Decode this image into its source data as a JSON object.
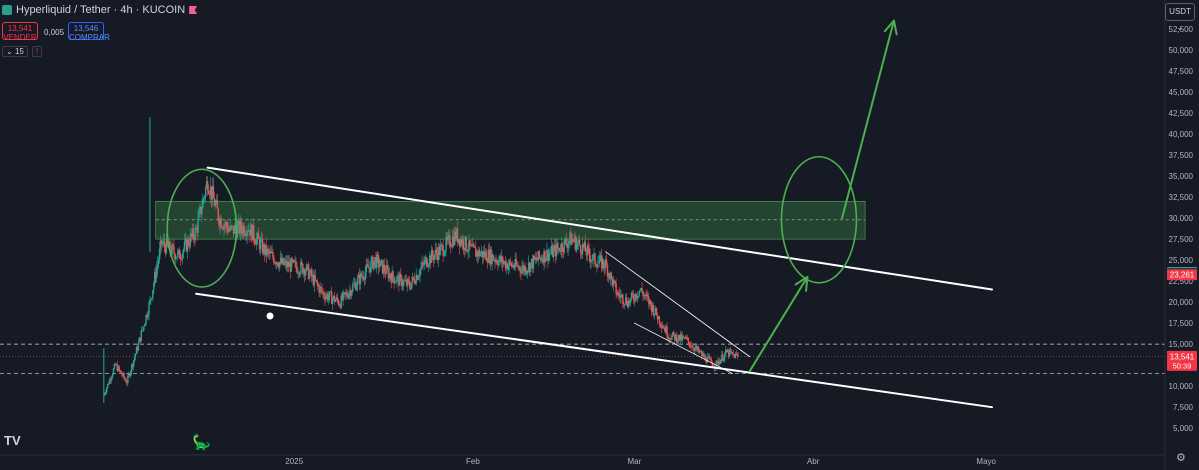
{
  "header": {
    "symbol": "Hyperliquid / Tether · 4h · KUCOIN",
    "sell_price": "13,541",
    "sell_label": "VENDER",
    "buy_price": "13,546",
    "buy_label": "COMPRAR",
    "spread": "0,005",
    "indicator_count": "15",
    "currency": "USDT"
  },
  "colors": {
    "background": "#161a25",
    "up": "#26a69a",
    "down": "#ef5350",
    "annotation_green": "#4caf50",
    "trendline": "#ffffff",
    "last_price": "#f23645"
  },
  "icons": [
    "tradingview-logo-icon",
    "dino-icon",
    "settings-icon",
    "chevron-down-icon",
    "flag-icon"
  ],
  "chart_data": {
    "type": "candlestick",
    "timeframe": "4h",
    "ylim": [
      3000,
      55000
    ],
    "y_ticks": [
      5000,
      7500,
      10000,
      12500,
      15000,
      17500,
      20000,
      22500,
      25000,
      27500,
      30000,
      32500,
      35000,
      37500,
      40000,
      42500,
      45000,
      47500,
      50000,
      52500
    ],
    "y_tick_labels": [
      "5,000",
      "7,500",
      "10,000",
      "12,500",
      "15,000",
      "17,500",
      "20,000",
      "22,500",
      "25,000",
      "27,500",
      "30,000",
      "32,500",
      "35,000",
      "37,500",
      "40,000",
      "42,500",
      "45,000",
      "47,500",
      "50,000",
      "52,500"
    ],
    "x_axis_labels": [
      "2025",
      "Feb",
      "Mar",
      "Abr",
      "Mayo"
    ],
    "x_axis_dates": [
      "2025-01-01",
      "2025-02-01",
      "2025-03-01",
      "2025-04-01",
      "2025-05-01"
    ],
    "x_range": [
      "2024-11-11",
      "2025-06-01"
    ],
    "price_path": [
      [
        "2024-11-29",
        9000
      ],
      [
        "2024-12-01",
        12500
      ],
      [
        "2024-12-03",
        10500
      ],
      [
        "2024-12-05",
        15000
      ],
      [
        "2024-12-07",
        20000
      ],
      [
        "2024-12-09",
        27000
      ],
      [
        "2024-12-12",
        25500
      ],
      [
        "2024-12-15",
        28500
      ],
      [
        "2024-12-17",
        34500
      ],
      [
        "2024-12-19",
        30000
      ],
      [
        "2024-12-21",
        28500
      ],
      [
        "2024-12-24",
        29000
      ],
      [
        "2024-12-27",
        26000
      ],
      [
        "2024-12-30",
        24500
      ],
      [
        "2025-01-03",
        24000
      ],
      [
        "2025-01-06",
        21000
      ],
      [
        "2025-01-09",
        20000
      ],
      [
        "2025-01-12",
        22500
      ],
      [
        "2025-01-15",
        25000
      ],
      [
        "2025-01-18",
        23000
      ],
      [
        "2025-01-21",
        22000
      ],
      [
        "2025-01-24",
        25000
      ],
      [
        "2025-01-27",
        26500
      ],
      [
        "2025-01-29",
        28000
      ],
      [
        "2025-02-01",
        26000
      ],
      [
        "2025-02-04",
        25500
      ],
      [
        "2025-02-07",
        24500
      ],
      [
        "2025-02-10",
        24000
      ],
      [
        "2025-02-13",
        25500
      ],
      [
        "2025-02-15",
        26000
      ],
      [
        "2025-02-18",
        27500
      ],
      [
        "2025-02-20",
        26500
      ],
      [
        "2025-02-22",
        25000
      ],
      [
        "2025-02-24",
        24500
      ],
      [
        "2025-02-26",
        21000
      ],
      [
        "2025-02-28",
        20000
      ],
      [
        "2025-03-02",
        21500
      ],
      [
        "2025-03-04",
        19500
      ],
      [
        "2025-03-07",
        16000
      ],
      [
        "2025-03-10",
        15500
      ],
      [
        "2025-03-13",
        13500
      ],
      [
        "2025-03-15",
        12500
      ],
      [
        "2025-03-17",
        14000
      ],
      [
        "2025-03-19",
        13500
      ]
    ],
    "price_range": {
      "high": 34500,
      "low": 9000
    },
    "last_price": 13541,
    "last_price_label": "13,541",
    "countdown": "50:39",
    "price_labels": [
      {
        "value": 23529,
        "label": "23,529",
        "color": "#26a69a"
      },
      {
        "value": 23379,
        "label": "23,379",
        "color": "#131722"
      },
      {
        "value": 23261,
        "label": "23,261",
        "color": "#f23645"
      }
    ],
    "horizontal_lines": [
      {
        "value": 15000,
        "style": "dashed"
      },
      {
        "value": 11500,
        "style": "dashed"
      }
    ],
    "zone": {
      "from_date": "2024-12-08",
      "to_date": "2025-04-10",
      "y_low": 27500,
      "y_high": 32000,
      "mid": 29800
    },
    "channel": {
      "upper": [
        [
          "2024-12-17",
          36000
        ],
        [
          "2025-05-02",
          21500
        ]
      ],
      "lower": [
        [
          "2024-12-15",
          21000
        ],
        [
          "2025-05-02",
          7500
        ]
      ]
    },
    "wedge": {
      "upper": [
        [
          "2025-02-24",
          26000
        ],
        [
          "2025-03-21",
          13500
        ]
      ],
      "lower": [
        [
          "2025-03-01",
          17500
        ],
        [
          "2025-03-18",
          11500
        ]
      ]
    },
    "projection": [
      [
        "2025-03-21",
        11800
      ],
      [
        "2025-03-31",
        23000
      ]
    ],
    "projection2": [
      [
        "2025-04-06",
        30000
      ],
      [
        "2025-04-15",
        53500
      ]
    ],
    "ellipses": [
      {
        "center_date": "2024-12-16",
        "center_value": 28800,
        "date_half_width": 6,
        "value_half_height": 7000
      },
      {
        "center_date": "2025-04-02",
        "center_value": 29800,
        "date_half_width": 6.5,
        "value_half_height": 7500
      }
    ]
  }
}
